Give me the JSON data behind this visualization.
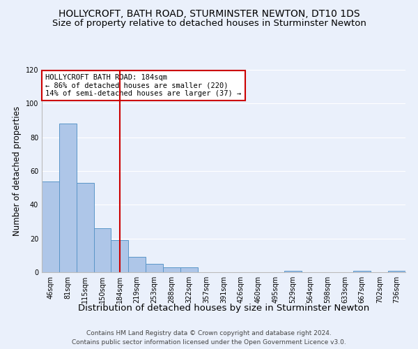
{
  "title": "HOLLYCROFT, BATH ROAD, STURMINSTER NEWTON, DT10 1DS",
  "subtitle": "Size of property relative to detached houses in Sturminster Newton",
  "xlabel": "Distribution of detached houses by size in Sturminster Newton",
  "ylabel": "Number of detached properties",
  "categories": [
    "46sqm",
    "81sqm",
    "115sqm",
    "150sqm",
    "184sqm",
    "219sqm",
    "253sqm",
    "288sqm",
    "322sqm",
    "357sqm",
    "391sqm",
    "426sqm",
    "460sqm",
    "495sqm",
    "529sqm",
    "564sqm",
    "598sqm",
    "633sqm",
    "667sqm",
    "702sqm",
    "736sqm"
  ],
  "values": [
    54,
    88,
    53,
    26,
    19,
    9,
    5,
    3,
    3,
    0,
    0,
    0,
    0,
    0,
    1,
    0,
    0,
    0,
    1,
    0,
    1
  ],
  "bar_color": "#aec6e8",
  "bar_edge_color": "#5a96c8",
  "highlight_index": 4,
  "highlight_color": "#cc0000",
  "ylim": [
    0,
    120
  ],
  "yticks": [
    0,
    20,
    40,
    60,
    80,
    100,
    120
  ],
  "annotation_text": "HOLLYCROFT BATH ROAD: 184sqm\n← 86% of detached houses are smaller (220)\n14% of semi-detached houses are larger (37) →",
  "footer_line1": "Contains HM Land Registry data © Crown copyright and database right 2024.",
  "footer_line2": "Contains public sector information licensed under the Open Government Licence v3.0.",
  "background_color": "#eaf0fb",
  "plot_bg_color": "#eaf0fb",
  "title_fontsize": 10,
  "subtitle_fontsize": 9.5,
  "xlabel_fontsize": 9.5,
  "ylabel_fontsize": 8.5,
  "tick_fontsize": 7,
  "annotation_fontsize": 7.5,
  "footer_fontsize": 6.5
}
